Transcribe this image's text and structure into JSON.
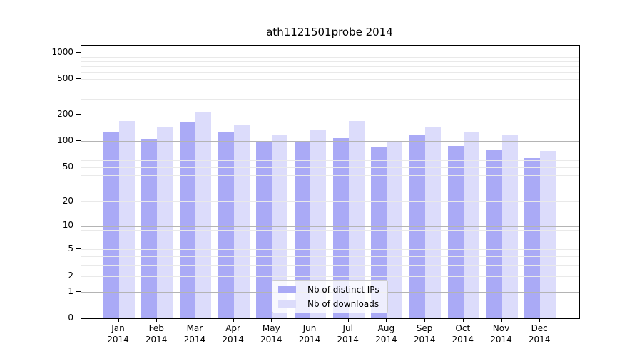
{
  "chart_data": {
    "type": "bar",
    "title": "ath1121501probe 2014",
    "scale": "log10(value+1)",
    "categories": [
      "Jan",
      "Feb",
      "Mar",
      "Apr",
      "May",
      "Jun",
      "Jul",
      "Aug",
      "Sep",
      "Oct",
      "Nov",
      "Dec"
    ],
    "year_label": "2014",
    "series": [
      {
        "name": "Nb of distinct IPs",
        "color": "#aaaaf6",
        "values": [
          126,
          105,
          164,
          124,
          97,
          100,
          108,
          86,
          118,
          88,
          80,
          63
        ]
      },
      {
        "name": "Nb of downloads",
        "color": "#dcdcfb",
        "values": [
          168,
          145,
          208,
          151,
          117,
          133,
          167,
          99,
          142,
          128,
          117,
          77
        ]
      }
    ],
    "y_ticks": [
      0,
      1,
      2,
      5,
      10,
      20,
      50,
      100,
      200,
      500,
      1000
    ],
    "ylim": [
      0,
      1200
    ],
    "grid": {
      "on": true,
      "minor_color": "#e9e9e9",
      "major_color": "#b4b4b4",
      "major_values": [
        1,
        10,
        100
      ],
      "light_major_values": [
        1000
      ]
    },
    "legend": {
      "position": "bottom-center"
    },
    "axis_color": "#000000",
    "background_color": "#ffffff"
  }
}
